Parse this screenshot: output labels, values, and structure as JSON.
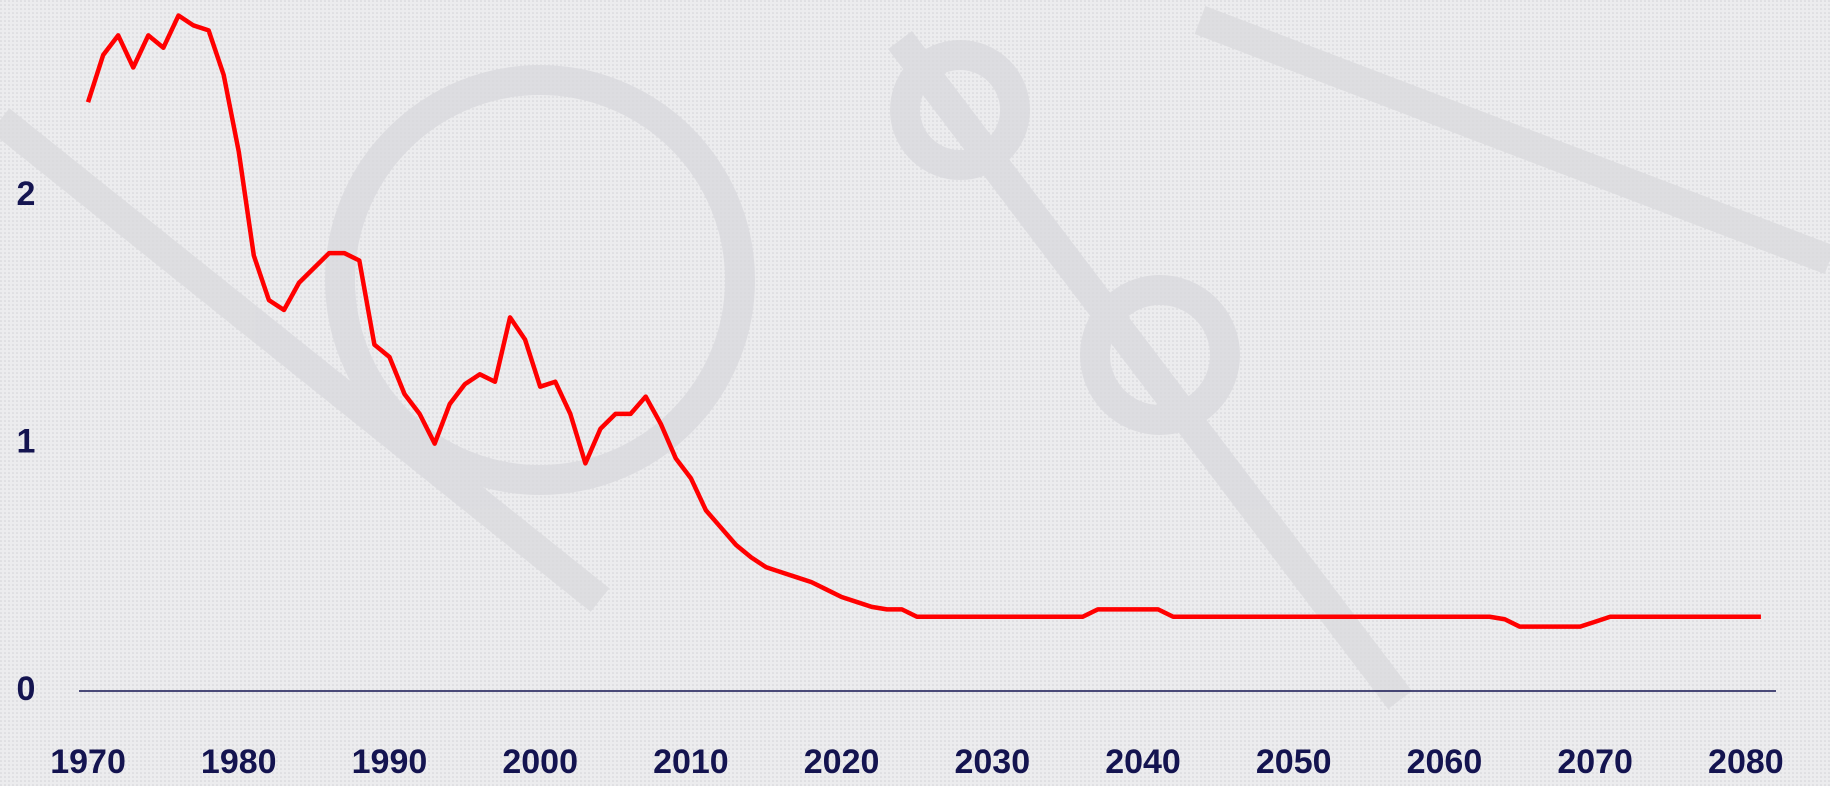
{
  "chart_data": {
    "type": "line",
    "x": [
      1970,
      1971,
      1972,
      1973,
      1974,
      1975,
      1976,
      1977,
      1978,
      1979,
      1980,
      1981,
      1982,
      1983,
      1984,
      1985,
      1986,
      1987,
      1988,
      1989,
      1990,
      1991,
      1992,
      1993,
      1994,
      1995,
      1996,
      1997,
      1998,
      1999,
      2000,
      2001,
      2002,
      2003,
      2004,
      2005,
      2006,
      2007,
      2008,
      2009,
      2010,
      2011,
      2012,
      2013,
      2014,
      2015,
      2016,
      2017,
      2018,
      2019,
      2020,
      2021,
      2022,
      2023,
      2024,
      2025,
      2026,
      2027,
      2028,
      2029,
      2030,
      2031,
      2032,
      2033,
      2034,
      2035,
      2036,
      2037,
      2038,
      2039,
      2040,
      2041,
      2042,
      2043,
      2044,
      2045,
      2046,
      2047,
      2048,
      2049,
      2050,
      2051,
      2052,
      2053,
      2054,
      2055,
      2056,
      2057,
      2058,
      2059,
      2060,
      2061,
      2062,
      2063,
      2064,
      2065,
      2066,
      2067,
      2068,
      2069,
      2070,
      2071,
      2072,
      2073,
      2074,
      2075,
      2076,
      2077,
      2078,
      2079,
      2080,
      2081
    ],
    "series": [
      {
        "color": "#ff0000",
        "values": [
          2.38,
          2.57,
          2.65,
          2.52,
          2.65,
          2.6,
          2.73,
          2.69,
          2.67,
          2.49,
          2.18,
          1.76,
          1.58,
          1.54,
          1.65,
          1.71,
          1.77,
          1.77,
          1.74,
          1.4,
          1.35,
          1.2,
          1.12,
          1.0,
          1.16,
          1.24,
          1.28,
          1.25,
          1.51,
          1.42,
          1.23,
          1.25,
          1.12,
          0.92,
          1.06,
          1.12,
          1.12,
          1.19,
          1.08,
          0.94,
          0.86,
          0.73,
          0.66,
          0.59,
          0.54,
          0.5,
          0.48,
          0.46,
          0.44,
          0.41,
          0.38,
          0.36,
          0.34,
          0.33,
          0.33,
          0.3,
          0.3,
          0.3,
          0.3,
          0.3,
          0.3,
          0.3,
          0.3,
          0.3,
          0.3,
          0.3,
          0.3,
          0.33,
          0.33,
          0.33,
          0.33,
          0.33,
          0.3,
          0.3,
          0.3,
          0.3,
          0.3,
          0.3,
          0.3,
          0.3,
          0.3,
          0.3,
          0.3,
          0.3,
          0.3,
          0.3,
          0.3,
          0.3,
          0.3,
          0.3,
          0.3,
          0.3,
          0.3,
          0.3,
          0.29,
          0.26,
          0.26,
          0.26,
          0.26,
          0.26,
          0.28,
          0.3,
          0.3,
          0.3,
          0.3,
          0.3,
          0.3,
          0.3,
          0.3,
          0.3,
          0.3,
          0.3
        ]
      }
    ],
    "xlim": [
      1969.4,
      2082
    ],
    "xticks": [
      1970,
      1980,
      1990,
      2000,
      2010,
      2020,
      2030,
      2040,
      2050,
      2060,
      2070,
      2080
    ],
    "ylim": [
      0,
      2.75
    ],
    "yticks": [
      0,
      1,
      2
    ]
  }
}
